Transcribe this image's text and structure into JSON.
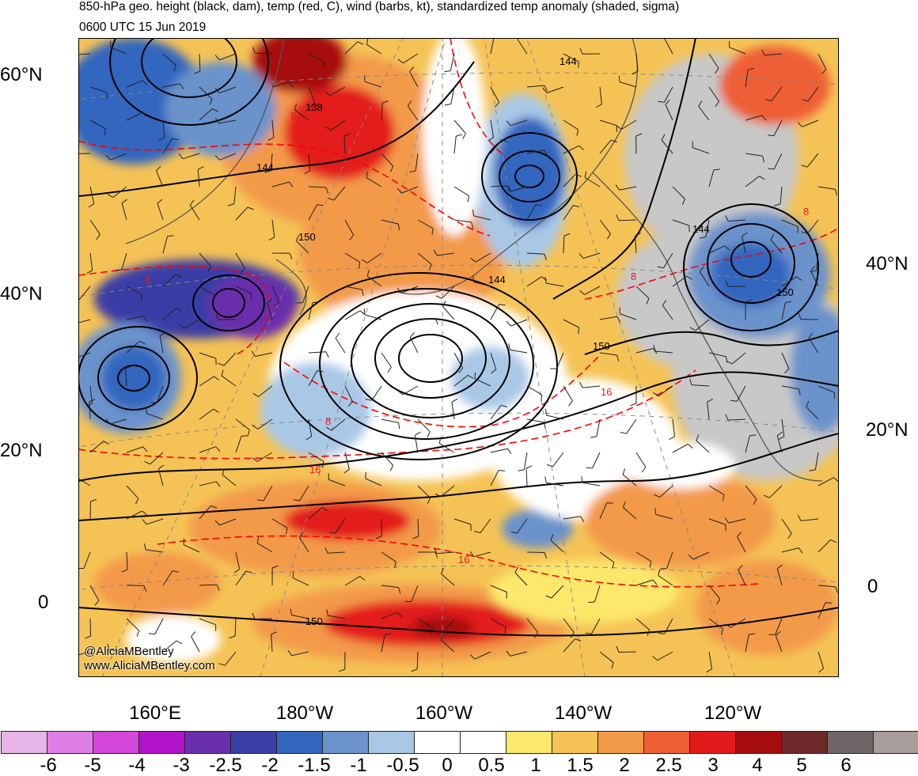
{
  "titles": {
    "line1": "850-hPa geo. height (black, dam), temp (red, C), wind (barbs, kt), standardized temp anomaly (shaded, sigma)",
    "line2": "0600 UTC 15 Jun 2019"
  },
  "map": {
    "lat_labels_left": [
      "60°N",
      "40°N",
      "20°N",
      "0"
    ],
    "lat_labels_right": [
      "40°N",
      "20°N",
      "0"
    ],
    "lon_labels": [
      "160°E",
      "180°W",
      "160°W",
      "140°W",
      "120°W"
    ],
    "height_contour_labels": [
      "144",
      "138",
      "144",
      "150",
      "144",
      "144",
      "150",
      "150",
      "150"
    ],
    "temp_contour_labels": [
      "8",
      "8",
      "8",
      "8",
      "16",
      "16",
      "16",
      "8"
    ],
    "credits": [
      "@AliciaMBentley",
      "www.AliciaMBentley.com"
    ],
    "colors": {
      "height_contours": "#000000",
      "temp_contours": "#ff0000",
      "land": "#c8c8c8",
      "coastline": "#555555"
    }
  },
  "colorbar": {
    "colors": [
      "#e6b4e6",
      "#e17de6",
      "#d447d8",
      "#b013c8",
      "#6a2fad",
      "#3b3ea6",
      "#3366bf",
      "#6b93cc",
      "#a9c8e6",
      "#ffffff",
      "#ffffff",
      "#fde86c",
      "#f5c355",
      "#f39a48",
      "#ee5f35",
      "#e31a1c",
      "#a70d0d",
      "#6e2a2a",
      "#6f6767",
      "#a89c9c"
    ],
    "tick_labels": [
      "-6",
      "-5",
      "-4",
      "-3",
      "-2.5",
      "-2",
      "-1.5",
      "-1",
      "-0.5",
      "0",
      "0.5",
      "1",
      "1.5",
      "2",
      "2.5",
      "3",
      "4",
      "5",
      "6"
    ]
  }
}
